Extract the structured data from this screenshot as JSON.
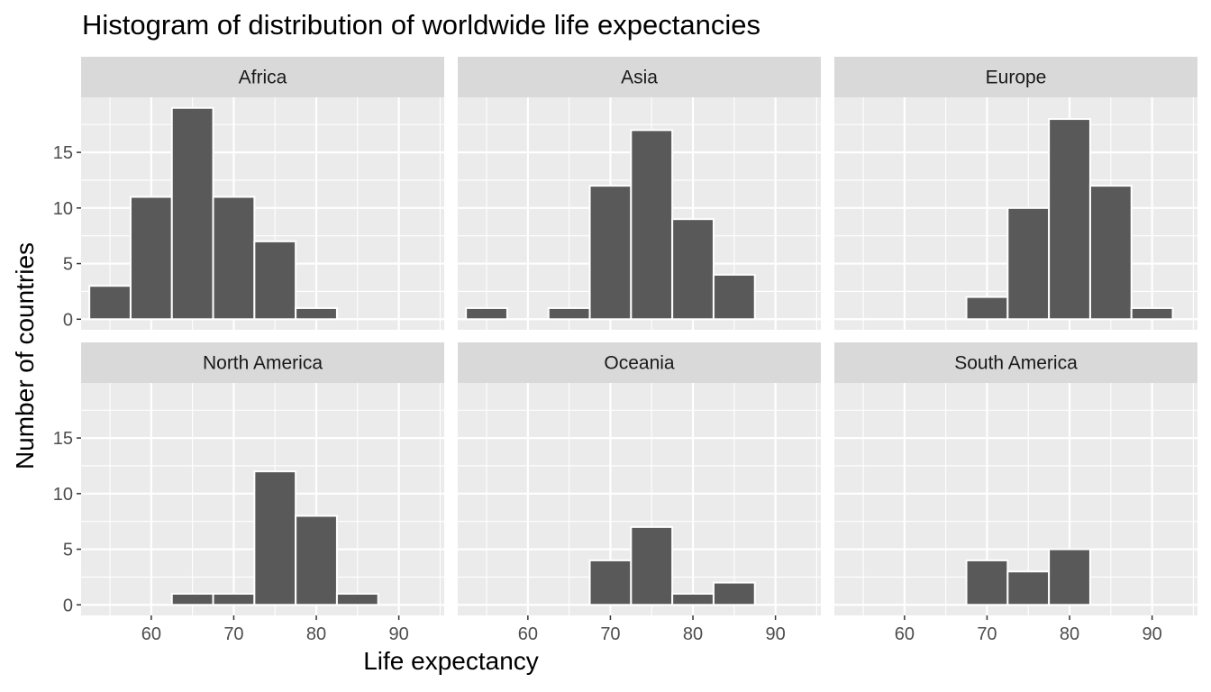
{
  "chart_data": {
    "type": "bar",
    "title": "Histogram of distribution of worldwide life expectancies",
    "xlabel": "Life expectancy",
    "ylabel": "Number of countries",
    "xlim": [
      51.5,
      95.5
    ],
    "ylim": [
      -0.95,
      19.95
    ],
    "x_ticks": [
      60,
      70,
      80,
      90
    ],
    "y_ticks": [
      0,
      5,
      10,
      15
    ],
    "bin_width": 5,
    "grid": true,
    "facets": [
      {
        "name": "Africa",
        "bars": [
          {
            "x": 55,
            "count": 3
          },
          {
            "x": 60,
            "count": 11
          },
          {
            "x": 65,
            "count": 19
          },
          {
            "x": 70,
            "count": 11
          },
          {
            "x": 75,
            "count": 7
          },
          {
            "x": 80,
            "count": 1
          }
        ]
      },
      {
        "name": "Asia",
        "bars": [
          {
            "x": 55,
            "count": 1
          },
          {
            "x": 65,
            "count": 1
          },
          {
            "x": 70,
            "count": 12
          },
          {
            "x": 75,
            "count": 17
          },
          {
            "x": 80,
            "count": 9
          },
          {
            "x": 85,
            "count": 4
          }
        ]
      },
      {
        "name": "Europe",
        "bars": [
          {
            "x": 70,
            "count": 2
          },
          {
            "x": 75,
            "count": 10
          },
          {
            "x": 80,
            "count": 18
          },
          {
            "x": 85,
            "count": 12
          },
          {
            "x": 90,
            "count": 1
          }
        ]
      },
      {
        "name": "North America",
        "bars": [
          {
            "x": 65,
            "count": 1
          },
          {
            "x": 70,
            "count": 1
          },
          {
            "x": 75,
            "count": 12
          },
          {
            "x": 80,
            "count": 8
          },
          {
            "x": 85,
            "count": 1
          }
        ]
      },
      {
        "name": "Oceania",
        "bars": [
          {
            "x": 70,
            "count": 4
          },
          {
            "x": 75,
            "count": 7
          },
          {
            "x": 80,
            "count": 1
          },
          {
            "x": 85,
            "count": 2
          }
        ]
      },
      {
        "name": "South America",
        "bars": [
          {
            "x": 70,
            "count": 4
          },
          {
            "x": 75,
            "count": 3
          },
          {
            "x": 80,
            "count": 5
          }
        ]
      }
    ]
  },
  "colors": {
    "panel_background": "#ebebeb",
    "strip_background": "#d9d9d9",
    "grid_line": "#ffffff",
    "bar_fill": "#595959",
    "bar_outline": "#ffffff",
    "tick_mark": "#333333",
    "tick_text": "#4d4d4d"
  }
}
